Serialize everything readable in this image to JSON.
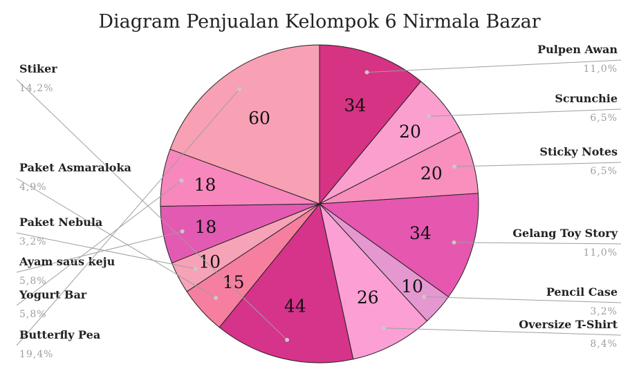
{
  "chart_data": {
    "type": "pie",
    "title": "Diagram Penjualan Kelompok 6 Nirmala Bazar",
    "slices": [
      {
        "label": "Pulpen Awan",
        "value": 34,
        "percent": "11,0%",
        "color": "#d63384"
      },
      {
        "label": "Scrunchie",
        "value": 20,
        "percent": "6,5%",
        "color": "#fb9fcf"
      },
      {
        "label": "Sticky Notes",
        "value": 20,
        "percent": "6,5%",
        "color": "#f88fbd"
      },
      {
        "label": "Gelang Toy Story",
        "value": 34,
        "percent": "11,0%",
        "color": "#e657b0"
      },
      {
        "label": "Pencil Case",
        "value": 10,
        "percent": "3,2%",
        "color": "#e598cf"
      },
      {
        "label": "Oversize T-Shirt",
        "value": 26,
        "percent": "8,4%",
        "color": "#fc9fd4"
      },
      {
        "label": "Stiker",
        "value": 44,
        "percent": "14,2%",
        "color": "#d6338a"
      },
      {
        "label": "Paket Asmaraloka",
        "value": 15,
        "percent": "4,9%",
        "color": "#f67f9f"
      },
      {
        "label": "Paket Nebula",
        "value": 10,
        "percent": "3,2%",
        "color": "#f7a3b7"
      },
      {
        "label": "Ayam saus keju",
        "value": 18,
        "percent": "5,8%",
        "color": "#e35ab2"
      },
      {
        "label": "Yogurt Bar",
        "value": 18,
        "percent": "5,8%",
        "color": "#f787bd"
      },
      {
        "label": "Butterfly Pea",
        "value": 60,
        "percent": "19,4%",
        "color": "#f8a0b4"
      }
    ],
    "start_angle_deg": 0,
    "direction": "clockwise",
    "legend": "none"
  }
}
